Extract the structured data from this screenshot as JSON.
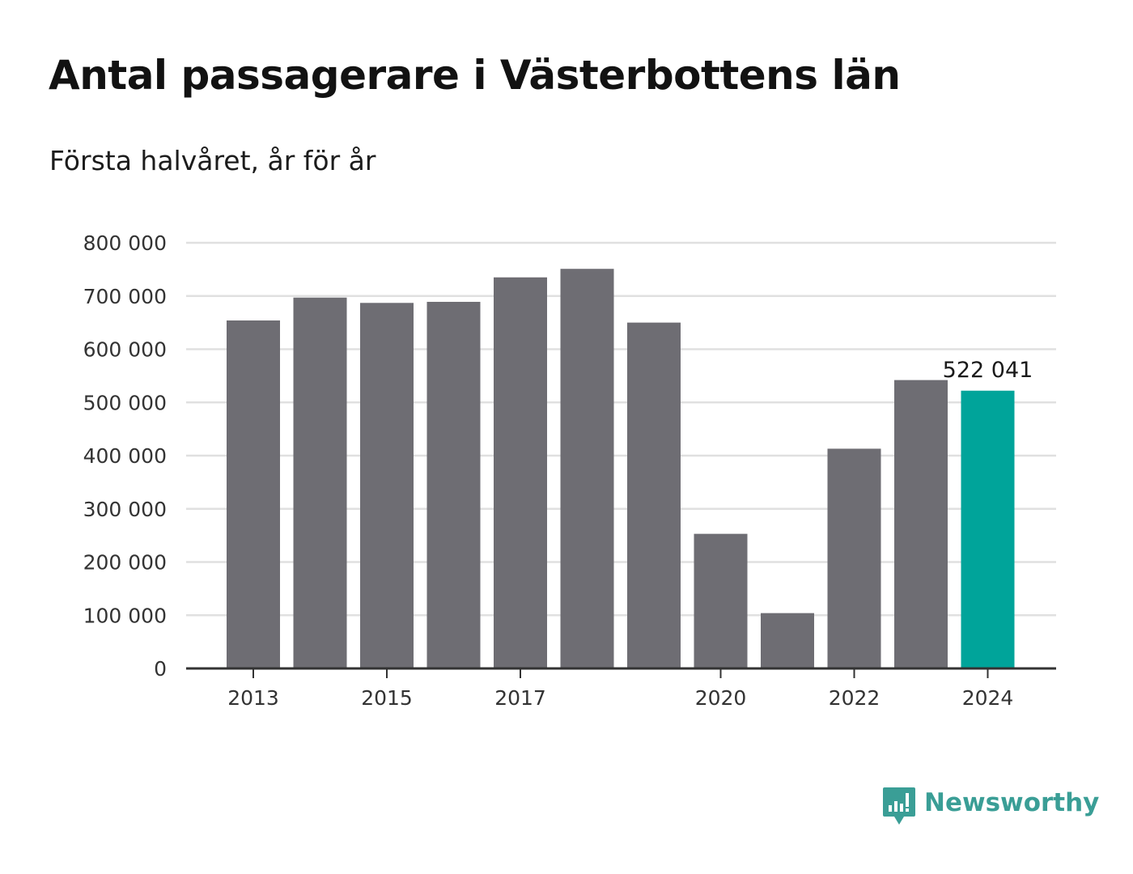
{
  "chart_data": {
    "type": "bar",
    "title": "Antal passagerare i Västerbottens län",
    "subtitle": "Första halvåret, år för år",
    "x": [
      2013,
      2014,
      2015,
      2016,
      2017,
      2018,
      2019,
      2020,
      2021,
      2022,
      2023,
      2024
    ],
    "x_tick_labels": [
      "2013",
      "2015",
      "2017",
      "2020",
      "2022",
      "2024"
    ],
    "values": [
      654000,
      697000,
      687000,
      689000,
      735000,
      751000,
      650000,
      253000,
      104000,
      413000,
      542000,
      522041
    ],
    "ylim": [
      0,
      800000
    ],
    "y_ticks": [
      0,
      100000,
      200000,
      300000,
      400000,
      500000,
      600000,
      700000,
      800000
    ],
    "y_tick_labels": [
      "0",
      "100 000",
      "200 000",
      "300 000",
      "400 000",
      "500 000",
      "600 000",
      "700 000",
      "800 000"
    ],
    "grid": true,
    "highlight_index": 11,
    "annotation": {
      "index": 11,
      "text": "522 041"
    },
    "colors": {
      "bar": "#6e6d73",
      "highlight": "#00a49a",
      "grid": "#e0e0e0",
      "axis": "#333333"
    }
  },
  "brand": {
    "name": "Newsworthy",
    "logo_icon": "newsworthy-chart-bubble-icon",
    "color": "#3a9e96"
  }
}
